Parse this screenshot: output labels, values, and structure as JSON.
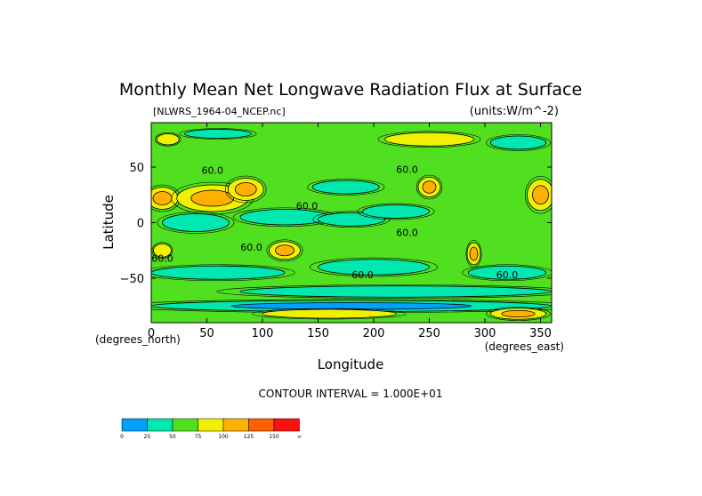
{
  "chart_data": {
    "type": "heatmap",
    "title": "Monthly Mean Net Longwave Radiation Flux at Surface",
    "file_label": "[NLWRS_1964-04_NCEP.nc]",
    "units_label": "(units:W/m^-2)",
    "xlabel": "Longitude",
    "ylabel": "Latitude",
    "x_unit_label": "(degrees_east)",
    "y_unit_label": "(degrees_north)",
    "xlim": [
      0,
      360
    ],
    "ylim": [
      -90,
      90
    ],
    "x_ticks": [
      0,
      50,
      100,
      150,
      200,
      250,
      300,
      350
    ],
    "y_ticks": [
      50,
      0,
      -50
    ],
    "y_tick_labels": [
      "50",
      "0",
      "−50"
    ],
    "contour_interval_text": "CONTOUR INTERVAL = 1.000E+01",
    "contour_labels": [
      "60.0",
      "60.0",
      "60.0",
      "60.0",
      "60.0",
      "60.0",
      "60.0",
      "60.0"
    ],
    "colorbar": {
      "labels": [
        "0",
        "25",
        "50",
        "75",
        "100",
        "125",
        "150",
        "∞"
      ],
      "colors": [
        "#00a0ff",
        "#00e8b0",
        "#50e020",
        "#f0f000",
        "#ffb000",
        "#ff6000",
        "#ff1010"
      ]
    },
    "background_color": "#50e020",
    "features": [
      {
        "lon": 10,
        "lat": 22,
        "rx": 14,
        "ry": 10,
        "value": 120
      },
      {
        "lon": 55,
        "lat": 22,
        "rx": 32,
        "ry": 12,
        "value": 115
      },
      {
        "lon": 85,
        "lat": 30,
        "rx": 16,
        "ry": 10,
        "value": 110
      },
      {
        "lon": 250,
        "lat": 32,
        "rx": 10,
        "ry": 9,
        "value": 115
      },
      {
        "lon": 350,
        "lat": 25,
        "rx": 12,
        "ry": 14,
        "value": 120
      },
      {
        "lon": 120,
        "lat": -25,
        "rx": 14,
        "ry": 8,
        "value": 100
      },
      {
        "lon": 10,
        "lat": -25,
        "rx": 8,
        "ry": 6,
        "value": 95
      },
      {
        "lon": 290,
        "lat": -28,
        "rx": 6,
        "ry": 10,
        "value": 110
      },
      {
        "lon": 15,
        "lat": 75,
        "rx": 10,
        "ry": 5,
        "value": 90
      },
      {
        "lon": 250,
        "lat": 75,
        "rx": 40,
        "ry": 6,
        "value": 85
      },
      {
        "lon": 60,
        "lat": 80,
        "rx": 30,
        "ry": 4,
        "value": 30
      },
      {
        "lon": 330,
        "lat": 72,
        "rx": 25,
        "ry": 6,
        "value": 40
      },
      {
        "lon": 40,
        "lat": 0,
        "rx": 30,
        "ry": 8,
        "value": 35
      },
      {
        "lon": 120,
        "lat": 5,
        "rx": 40,
        "ry": 7,
        "value": 30
      },
      {
        "lon": 180,
        "lat": 3,
        "rx": 30,
        "ry": 6,
        "value": 30
      },
      {
        "lon": 220,
        "lat": 10,
        "rx": 30,
        "ry": 6,
        "value": 35
      },
      {
        "lon": 175,
        "lat": 32,
        "rx": 30,
        "ry": 6,
        "value": 30
      },
      {
        "lon": 60,
        "lat": -45,
        "rx": 60,
        "ry": 6,
        "value": 35
      },
      {
        "lon": 200,
        "lat": -40,
        "rx": 50,
        "ry": 7,
        "value": 35
      },
      {
        "lon": 320,
        "lat": -45,
        "rx": 35,
        "ry": 6,
        "value": 38
      },
      {
        "lon": 220,
        "lat": -62,
        "rx": 140,
        "ry": 5,
        "value": 30
      },
      {
        "lon": 180,
        "lat": -75,
        "rx": 180,
        "ry": 5,
        "value": 20
      },
      {
        "lon": 160,
        "lat": -82,
        "rx": 60,
        "ry": 4,
        "value": 90
      },
      {
        "lon": 330,
        "lat": -82,
        "rx": 25,
        "ry": 5,
        "value": 110
      }
    ]
  }
}
